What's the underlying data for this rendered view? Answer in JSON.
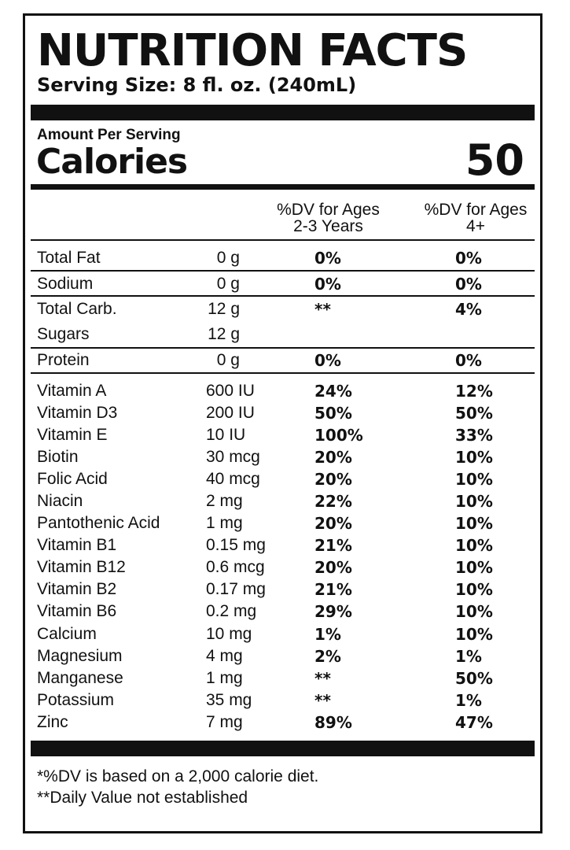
{
  "label": {
    "title": "NUTRITION FACTS",
    "serving_size": "Serving Size: 8 fl. oz. (240mL)",
    "amount_per_serving": "Amount Per Serving",
    "calories_label": "Calories",
    "calories_value": "50"
  },
  "columns": {
    "ages_2_3_line1": "%DV for Ages",
    "ages_2_3_line2": "2-3 Years",
    "ages_4_line1": "%DV for Ages",
    "ages_4_line2": "4+"
  },
  "macros": [
    {
      "name": "Total Fat",
      "amount": "0 g",
      "dv_2_3": "0%",
      "dv_4": "0%"
    },
    {
      "name": "Sodium",
      "amount": "0 g",
      "dv_2_3": "0%",
      "dv_4": "0%"
    },
    {
      "name": "Total Carb.",
      "amount": "12 g",
      "dv_2_3": "**",
      "dv_4": "4%"
    },
    {
      "name": "Sugars",
      "amount": "12 g",
      "dv_2_3": "",
      "dv_4": ""
    },
    {
      "name": "Protein",
      "amount": "0 g",
      "dv_2_3": "0%",
      "dv_4": "0%"
    }
  ],
  "micros": [
    {
      "name": "Vitamin A",
      "amount": "600 IU",
      "dv_2_3": "24%",
      "dv_4": "12%"
    },
    {
      "name": "Vitamin D3",
      "amount": "200 IU",
      "dv_2_3": "50%",
      "dv_4": "50%"
    },
    {
      "name": "Vitamin E",
      "amount": "10 IU",
      "dv_2_3": "100%",
      "dv_4": "33%"
    },
    {
      "name": "Biotin",
      "amount": "30 mcg",
      "dv_2_3": "20%",
      "dv_4": "10%"
    },
    {
      "name": "Folic Acid",
      "amount": "40 mcg",
      "dv_2_3": "20%",
      "dv_4": "10%"
    },
    {
      "name": "Niacin",
      "amount": "2 mg",
      "dv_2_3": "22%",
      "dv_4": "10%"
    },
    {
      "name": "Pantothenic Acid",
      "amount": "1 mg",
      "dv_2_3": "20%",
      "dv_4": "10%"
    },
    {
      "name": "Vitamin B1",
      "amount": "0.15 mg",
      "dv_2_3": "21%",
      "dv_4": "10%"
    },
    {
      "name": "Vitamin B12",
      "amount": "0.6 mcg",
      "dv_2_3": "20%",
      "dv_4": "10%"
    },
    {
      "name": "Vitamin B2",
      "amount": "0.17 mg",
      "dv_2_3": "21%",
      "dv_4": "10%"
    },
    {
      "name": "Vitamin B6",
      "amount": "0.2 mg",
      "dv_2_3": "29%",
      "dv_4": "10%"
    },
    {
      "name": "Calcium",
      "amount": "10 mg",
      "dv_2_3": "1%",
      "dv_4": "10%"
    },
    {
      "name": "Magnesium",
      "amount": "4 mg",
      "dv_2_3": "2%",
      "dv_4": "1%"
    },
    {
      "name": "Manganese",
      "amount": "1 mg",
      "dv_2_3": "**",
      "dv_4": "50%"
    },
    {
      "name": "Potassium",
      "amount": "35 mg",
      "dv_2_3": "**",
      "dv_4": "1%"
    },
    {
      "name": "Zinc",
      "amount": "7 mg",
      "dv_2_3": "89%",
      "dv_4": "47%"
    }
  ],
  "footnotes": {
    "dv_basis": "*%DV is based on a 2,000 calorie diet.",
    "not_established": "**Daily Value not established"
  }
}
